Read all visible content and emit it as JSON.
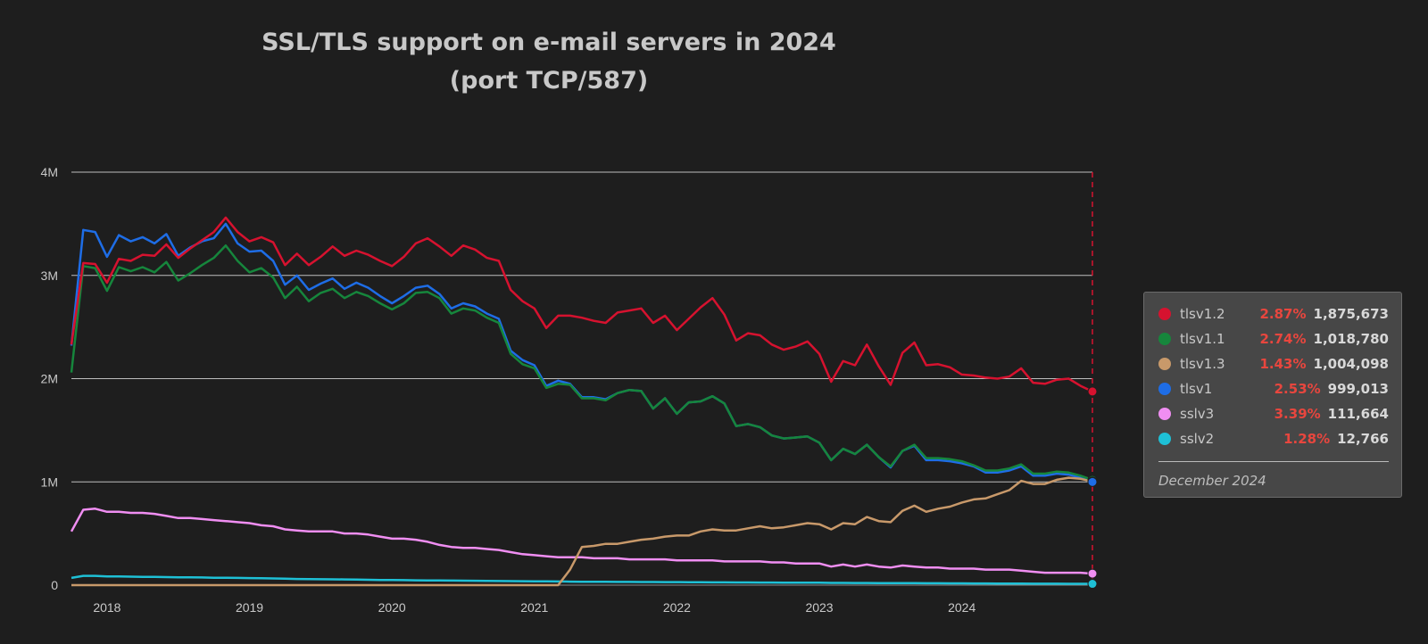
{
  "chart_data": {
    "type": "line",
    "title": "SSL/TLS support on e-mail servers in 2024",
    "subtitle": "(port TCP/587)",
    "y_ticks": [
      "0",
      "1M",
      "2M",
      "3M",
      "4M"
    ],
    "ylim": [
      0,
      4000000
    ],
    "x_ticks": [
      "2018",
      "2019",
      "2020",
      "2021",
      "2022",
      "2023",
      "2024"
    ],
    "xlim": [
      "2017-10",
      "2024-12"
    ],
    "grid": "horizontal",
    "x_start": "2017-10",
    "x_step": "month",
    "series": [
      {
        "name": "tlsv1.2",
        "color": "#d6122f",
        "values": [
          2330000,
          3120000,
          3110000,
          2930000,
          3160000,
          3140000,
          3200000,
          3190000,
          3300000,
          3170000,
          3260000,
          3340000,
          3420000,
          3560000,
          3420000,
          3330000,
          3370000,
          3320000,
          3100000,
          3210000,
          3100000,
          3180000,
          3280000,
          3190000,
          3240000,
          3200000,
          3140000,
          3090000,
          3180000,
          3310000,
          3360000,
          3280000,
          3190000,
          3290000,
          3250000,
          3170000,
          3140000,
          2860000,
          2750000,
          2680000,
          2490000,
          2610000,
          2610000,
          2590000,
          2560000,
          2540000,
          2640000,
          2660000,
          2680000,
          2540000,
          2610000,
          2470000,
          2580000,
          2690000,
          2780000,
          2620000,
          2370000,
          2440000,
          2420000,
          2330000,
          2280000,
          2310000,
          2360000,
          2240000,
          1970000,
          2170000,
          2130000,
          2330000,
          2120000,
          1940000,
          2250000,
          2350000,
          2130000,
          2140000,
          2110000,
          2040000,
          2030000,
          2010000,
          2000000,
          2020000,
          2100000,
          1960000,
          1950000,
          1990000,
          2000000,
          1930000,
          1875673
        ]
      },
      {
        "name": "tlsv1.1",
        "color": "#16863c",
        "values": [
          2060000,
          3090000,
          3070000,
          2850000,
          3080000,
          3040000,
          3080000,
          3030000,
          3130000,
          2950000,
          3020000,
          3100000,
          3170000,
          3290000,
          3140000,
          3030000,
          3070000,
          2980000,
          2780000,
          2890000,
          2750000,
          2830000,
          2870000,
          2780000,
          2840000,
          2800000,
          2730000,
          2670000,
          2730000,
          2830000,
          2840000,
          2780000,
          2630000,
          2680000,
          2660000,
          2590000,
          2540000,
          2240000,
          2140000,
          2100000,
          1910000,
          1950000,
          1940000,
          1810000,
          1810000,
          1790000,
          1860000,
          1890000,
          1880000,
          1710000,
          1810000,
          1660000,
          1770000,
          1780000,
          1830000,
          1760000,
          1540000,
          1560000,
          1530000,
          1450000,
          1420000,
          1430000,
          1440000,
          1380000,
          1210000,
          1320000,
          1270000,
          1360000,
          1240000,
          1150000,
          1300000,
          1360000,
          1230000,
          1230000,
          1220000,
          1200000,
          1160000,
          1110000,
          1110000,
          1130000,
          1170000,
          1080000,
          1080000,
          1100000,
          1090000,
          1060000,
          1018780
        ]
      },
      {
        "name": "tlsv1.3",
        "color": "#c8996a",
        "values": [
          0,
          0,
          0,
          0,
          0,
          0,
          0,
          0,
          0,
          0,
          0,
          0,
          0,
          0,
          0,
          0,
          0,
          0,
          0,
          0,
          0,
          0,
          0,
          0,
          0,
          0,
          0,
          0,
          0,
          0,
          0,
          0,
          0,
          0,
          0,
          0,
          0,
          0,
          0,
          0,
          0,
          0,
          150000,
          370000,
          380000,
          400000,
          400000,
          420000,
          440000,
          450000,
          470000,
          480000,
          480000,
          520000,
          540000,
          530000,
          530000,
          550000,
          570000,
          550000,
          560000,
          580000,
          600000,
          590000,
          540000,
          600000,
          590000,
          660000,
          620000,
          610000,
          720000,
          770000,
          710000,
          740000,
          760000,
          800000,
          830000,
          840000,
          880000,
          920000,
          1010000,
          980000,
          980000,
          1020000,
          1040000,
          1030000,
          1004098
        ]
      },
      {
        "name": "tlsv1",
        "color": "#1e6de6",
        "values": [
          2320000,
          3440000,
          3420000,
          3180000,
          3390000,
          3330000,
          3370000,
          3310000,
          3400000,
          3190000,
          3270000,
          3330000,
          3360000,
          3500000,
          3310000,
          3230000,
          3240000,
          3140000,
          2910000,
          3000000,
          2860000,
          2920000,
          2970000,
          2870000,
          2930000,
          2880000,
          2800000,
          2730000,
          2800000,
          2880000,
          2900000,
          2820000,
          2680000,
          2730000,
          2700000,
          2630000,
          2580000,
          2270000,
          2180000,
          2130000,
          1930000,
          1980000,
          1950000,
          1820000,
          1820000,
          1800000,
          1860000,
          1890000,
          1880000,
          1710000,
          1810000,
          1660000,
          1770000,
          1780000,
          1830000,
          1760000,
          1540000,
          1560000,
          1530000,
          1450000,
          1420000,
          1430000,
          1440000,
          1380000,
          1210000,
          1320000,
          1270000,
          1360000,
          1240000,
          1140000,
          1300000,
          1350000,
          1210000,
          1210000,
          1200000,
          1180000,
          1150000,
          1090000,
          1090000,
          1110000,
          1150000,
          1060000,
          1060000,
          1080000,
          1070000,
          1040000,
          999013
        ]
      },
      {
        "name": "sslv3",
        "color": "#f08ef2",
        "values": [
          520000,
          730000,
          740000,
          710000,
          710000,
          700000,
          700000,
          690000,
          670000,
          650000,
          650000,
          640000,
          630000,
          620000,
          610000,
          600000,
          580000,
          570000,
          540000,
          530000,
          520000,
          520000,
          520000,
          500000,
          500000,
          490000,
          470000,
          450000,
          450000,
          440000,
          420000,
          390000,
          370000,
          360000,
          360000,
          350000,
          340000,
          320000,
          300000,
          290000,
          280000,
          270000,
          270000,
          270000,
          260000,
          260000,
          260000,
          250000,
          250000,
          250000,
          250000,
          240000,
          240000,
          240000,
          240000,
          230000,
          230000,
          230000,
          230000,
          220000,
          220000,
          210000,
          210000,
          210000,
          180000,
          200000,
          180000,
          200000,
          180000,
          170000,
          190000,
          180000,
          170000,
          170000,
          160000,
          160000,
          160000,
          150000,
          150000,
          150000,
          140000,
          130000,
          120000,
          120000,
          120000,
          120000,
          111664
        ]
      },
      {
        "name": "sslv2",
        "color": "#1ec0d6",
        "values": [
          70000,
          90000,
          90000,
          85000,
          85000,
          82000,
          80000,
          80000,
          78000,
          76000,
          75000,
          74000,
          72000,
          72000,
          70000,
          68000,
          67000,
          65000,
          62000,
          60000,
          58000,
          57000,
          56000,
          55000,
          54000,
          52000,
          50000,
          49000,
          48000,
          47000,
          46000,
          45000,
          44000,
          43000,
          42000,
          41000,
          40000,
          39000,
          38000,
          37000,
          36000,
          35000,
          34000,
          33000,
          33000,
          32000,
          31000,
          31000,
          30000,
          30000,
          29000,
          29000,
          28000,
          28000,
          27000,
          27000,
          26000,
          26000,
          25000,
          25000,
          24000,
          24000,
          23000,
          23000,
          22000,
          22000,
          21000,
          21000,
          20000,
          20000,
          19000,
          19000,
          18000,
          18000,
          17000,
          17000,
          16000,
          16000,
          15000,
          15000,
          15000,
          14000,
          14000,
          14000,
          13000,
          13000,
          12766
        ]
      }
    ],
    "tooltip": {
      "date": "December 2024",
      "rows": [
        {
          "name": "tlsv1.2",
          "pct": "2.87%",
          "value": "1,875,673",
          "color": "#d6122f"
        },
        {
          "name": "tlsv1.1",
          "pct": "2.74%",
          "value": "1,018,780",
          "color": "#16863c"
        },
        {
          "name": "tlsv1.3",
          "pct": "1.43%",
          "value": "1,004,098",
          "color": "#c8996a"
        },
        {
          "name": "tlsv1",
          "pct": "2.53%",
          "value": "999,013",
          "color": "#1e6de6"
        },
        {
          "name": "sslv3",
          "pct": "3.39%",
          "value": "111,664",
          "color": "#f08ef2"
        },
        {
          "name": "sslv2",
          "pct": "1.28%",
          "value": "12,766",
          "color": "#1ec0d6"
        }
      ]
    }
  }
}
